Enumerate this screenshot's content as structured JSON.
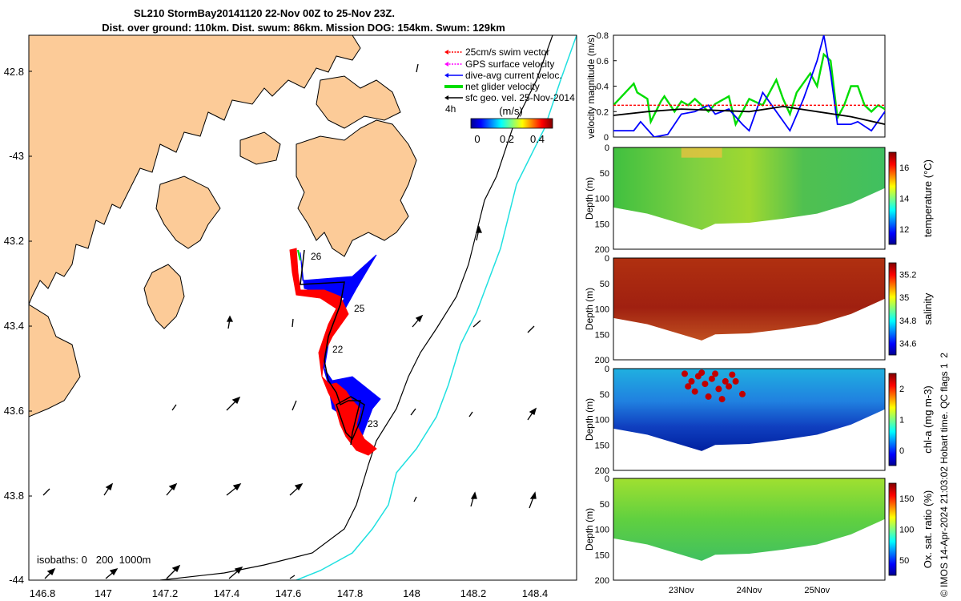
{
  "title": {
    "line1": "SL210 StormBay20141120 22-Nov 00Z to 25-Nov 23Z.",
    "line2": "Dist. over ground: 110km. Dist. swum: 86km. Mission DOG: 154km. Swum: 129km"
  },
  "map": {
    "lon_ticks": [
      "146.8",
      "147",
      "147.2",
      "147.4",
      "147.6",
      "147.8",
      "148",
      "148.2",
      "148.4"
    ],
    "lat_ticks": [
      "42.8",
      "-43",
      "43.2",
      "43.4",
      "43.6",
      "43.8",
      "-44"
    ],
    "day_labels": [
      "26",
      "25",
      "22",
      "23"
    ],
    "isobaths_label": "isobaths: 0   200  1000m",
    "legend": [
      {
        "label": "25cm/s swim vector",
        "color": "#ff0000"
      },
      {
        "label": "GPS surface velocity",
        "color": "#ff00ff"
      },
      {
        "label": "dive-avg current veloc.",
        "color": "#0000ff"
      },
      {
        "label": "net glider velocity",
        "color": "#00dd00"
      },
      {
        "label": "sfc geo. vel. 25-Nov-2014",
        "color": "#000000"
      }
    ],
    "legend_extra": "4h",
    "colorbar_title": "(m/s)",
    "colorbar_ticks": [
      "0",
      "0.2",
      "0.4"
    ],
    "land_color": "#fccb98"
  },
  "chart_data": [
    {
      "type": "line",
      "title": "",
      "ylabel": "velocity magnitude (m/s)",
      "ylim": [
        0,
        0.8
      ],
      "yticks": [
        "0",
        "0.2",
        "0.4",
        "0.6",
        "0.8"
      ],
      "x_days": [
        22.0,
        26.0
      ],
      "series": [
        {
          "name": "net glider velocity",
          "color": "#00dd00",
          "x": [
            22.0,
            22.3,
            22.35,
            22.5,
            22.55,
            22.7,
            22.75,
            22.9,
            23.0,
            23.1,
            23.2,
            23.4,
            23.5,
            23.7,
            23.8,
            24.0,
            24.2,
            24.4,
            24.5,
            24.6,
            24.7,
            24.9,
            25.0,
            25.1,
            25.2,
            25.3,
            25.4,
            25.5,
            25.6,
            25.7,
            25.8,
            25.9,
            26.0
          ],
          "y": [
            0.25,
            0.42,
            0.35,
            0.3,
            0.12,
            0.28,
            0.32,
            0.2,
            0.28,
            0.25,
            0.3,
            0.2,
            0.26,
            0.32,
            0.1,
            0.3,
            0.25,
            0.45,
            0.3,
            0.18,
            0.35,
            0.5,
            0.4,
            0.65,
            0.6,
            0.15,
            0.25,
            0.4,
            0.4,
            0.25,
            0.2,
            0.25,
            0.22
          ]
        },
        {
          "name": "dive-avg current veloc.",
          "color": "#0000ff",
          "x": [
            22.0,
            22.3,
            22.4,
            22.6,
            22.8,
            23.0,
            23.2,
            23.4,
            23.5,
            23.7,
            23.9,
            24.0,
            24.2,
            24.4,
            24.6,
            24.8,
            25.0,
            25.1,
            25.2,
            25.3,
            25.4,
            25.5,
            25.6,
            25.8,
            26.0
          ],
          "y": [
            0.05,
            0.05,
            0.12,
            0.0,
            0.02,
            0.18,
            0.2,
            0.25,
            0.18,
            0.22,
            0.1,
            0.05,
            0.35,
            0.2,
            0.05,
            0.3,
            0.6,
            0.8,
            0.5,
            0.1,
            0.1,
            0.1,
            0.12,
            0.05,
            0.2
          ]
        },
        {
          "name": "25cm/s swim vector",
          "color": "#ff0000",
          "x": [
            22.0,
            26.0
          ],
          "y": [
            0.25,
            0.25
          ]
        },
        {
          "name": "sfc geo. vel.",
          "color": "#000000",
          "x": [
            22.0,
            22.5,
            23.0,
            23.5,
            24.0,
            24.5,
            25.0,
            25.5,
            26.0
          ],
          "y": [
            0.17,
            0.2,
            0.22,
            0.21,
            0.2,
            0.24,
            0.2,
            0.16,
            0.1
          ]
        }
      ]
    },
    {
      "type": "heatmap",
      "variable": "temperature",
      "ylabel": "Depth (m)",
      "colorbar_label": "temperature (°C)",
      "colorbar_ticks": [
        "12",
        "14",
        "16"
      ],
      "ylim": [
        200,
        0
      ],
      "yticks": [
        "0",
        "50",
        "100",
        "150",
        "200"
      ],
      "bottom_depth_profile": [
        [
          22.0,
          118
        ],
        [
          22.5,
          130
        ],
        [
          23.0,
          150
        ],
        [
          23.3,
          162
        ],
        [
          23.5,
          150
        ],
        [
          24.0,
          148
        ],
        [
          24.5,
          140
        ],
        [
          25.0,
          130
        ],
        [
          25.5,
          110
        ],
        [
          26.0,
          80
        ]
      ]
    },
    {
      "type": "heatmap",
      "variable": "salinity",
      "ylabel": "Depth (m)",
      "colorbar_label": "salinity",
      "colorbar_ticks": [
        "34.6",
        "34.8",
        "35",
        "35.2"
      ],
      "ylim": [
        200,
        0
      ],
      "yticks": [
        "0",
        "50",
        "100",
        "150",
        "200"
      ]
    },
    {
      "type": "heatmap",
      "variable": "chl-a",
      "ylabel": "Depth (m)",
      "colorbar_label": "chl-a (mg m-3)",
      "colorbar_ticks": [
        "0",
        "1",
        "2"
      ],
      "ylim": [
        200,
        0
      ],
      "yticks": [
        "0",
        "50",
        "100",
        "150",
        "200"
      ]
    },
    {
      "type": "heatmap",
      "variable": "oxygen",
      "ylabel": "Depth (m)",
      "colorbar_label": "Ox. sat. ratio (%)",
      "colorbar_ticks": [
        "50",
        "100",
        "150"
      ],
      "ylim": [
        200,
        0
      ],
      "yticks": [
        "0",
        "50",
        "100",
        "150",
        "200"
      ],
      "xticks": [
        "23Nov",
        "24Nov",
        "25Nov"
      ]
    }
  ],
  "footer": "© IMOS 14-Apr-2024 21:03:02 Hobart time. QC flags 1  2"
}
